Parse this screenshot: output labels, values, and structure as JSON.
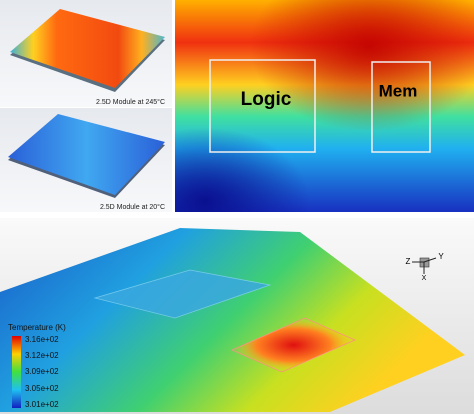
{
  "top_left": {
    "hot_caption": "2.5D Module at 245°C",
    "cold_caption": "2.5D Module at 20°C"
  },
  "heatmap": {
    "logic_label": "Logic",
    "mem_label": "Mem"
  },
  "bottom": {
    "legend_title": "Temperature (K)",
    "legend_labels": [
      "3.16e+02",
      "3.12e+02",
      "3.09e+02",
      "3.05e+02",
      "3.01e+02"
    ],
    "triad": [
      "Z",
      "Y",
      "X"
    ]
  }
}
